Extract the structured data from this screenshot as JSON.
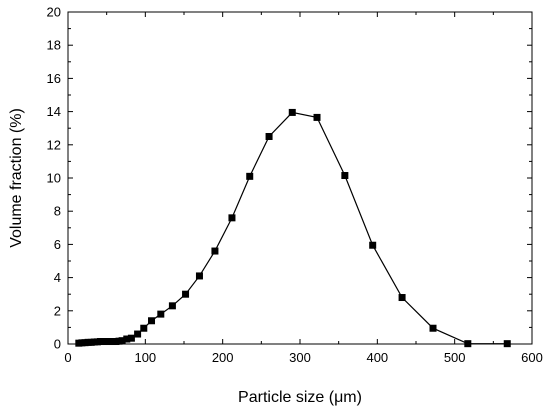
{
  "chart_data": {
    "type": "scatter",
    "title": "",
    "xlabel": "Particle size (μm)",
    "ylabel": "Volume fraction (%)",
    "xlim": [
      0,
      600
    ],
    "ylim": [
      0,
      20
    ],
    "x_ticks": [
      0,
      100,
      200,
      300,
      400,
      500,
      600
    ],
    "y_ticks": [
      0,
      2,
      4,
      6,
      8,
      10,
      12,
      14,
      16,
      18,
      20
    ],
    "grid": false,
    "marker": "square",
    "connected": true,
    "series": [
      {
        "x": [
          14,
          18,
          22,
          26,
          30,
          34,
          38,
          42,
          46,
          50,
          54,
          58,
          62,
          66,
          70,
          76,
          82,
          90,
          98,
          108,
          120,
          135,
          152,
          170,
          190,
          212,
          235,
          260,
          290,
          322,
          358,
          394,
          432,
          472,
          517,
          568
        ],
        "y": [
          0.05,
          0.07,
          0.08,
          0.1,
          0.1,
          0.12,
          0.13,
          0.15,
          0.15,
          0.15,
          0.15,
          0.15,
          0.15,
          0.17,
          0.2,
          0.3,
          0.35,
          0.6,
          0.95,
          1.4,
          1.8,
          2.3,
          3.0,
          4.1,
          5.6,
          7.6,
          10.1,
          12.5,
          13.95,
          13.65,
          10.15,
          5.95,
          2.8,
          0.95,
          0.02,
          0.02
        ]
      }
    ]
  }
}
